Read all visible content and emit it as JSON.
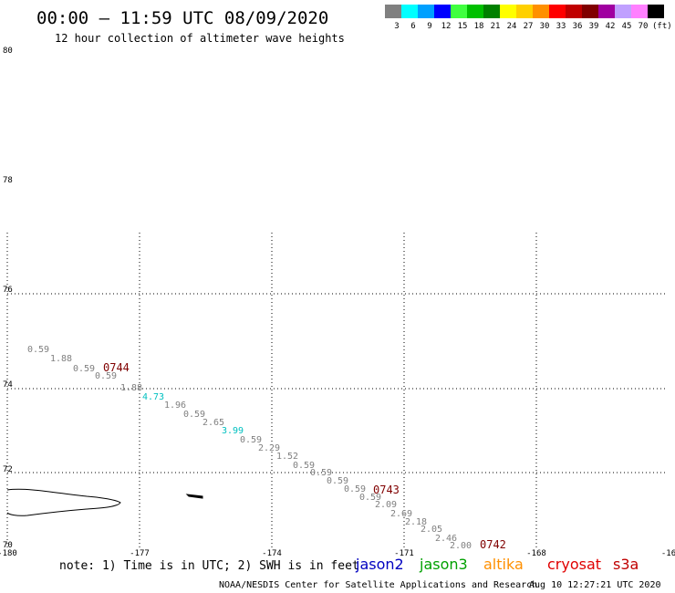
{
  "header": {
    "title": "00:00 – 11:59 UTC 08/09/2020",
    "subtitle": "12 hour collection of altimeter wave heights"
  },
  "legend": {
    "unit": "(ft)",
    "scale": [
      {
        "label": "3",
        "color": "#808080"
      },
      {
        "label": "6",
        "color": "#00ffff"
      },
      {
        "label": "9",
        "color": "#00a0ff"
      },
      {
        "label": "12",
        "color": "#0000ff"
      },
      {
        "label": "15",
        "color": "#40ff40"
      },
      {
        "label": "18",
        "color": "#00c000"
      },
      {
        "label": "21",
        "color": "#008000"
      },
      {
        "label": "24",
        "color": "#ffff00"
      },
      {
        "label": "27",
        "color": "#ffd000"
      },
      {
        "label": "30",
        "color": "#ff9000"
      },
      {
        "label": "33",
        "color": "#ff0000"
      },
      {
        "label": "36",
        "color": "#c00000"
      },
      {
        "label": "39",
        "color": "#800000"
      },
      {
        "label": "42",
        "color": "#a000a0"
      },
      {
        "label": "45",
        "color": "#c0a0ff"
      },
      {
        "label": "70",
        "color": "#ff80ff"
      },
      {
        "label": "",
        "color": "#000000"
      }
    ]
  },
  "axes": {
    "lat_labels": [
      "80",
      "78",
      "76",
      "74",
      "72",
      "70"
    ],
    "lon_labels": [
      "-180",
      "-177",
      "-174",
      "-171",
      "-168",
      "-16"
    ]
  },
  "track": [
    {
      "value": "0.59",
      "color": "#808080"
    },
    {
      "value": "1.88",
      "color": "#808080"
    },
    {
      "value": "0.59",
      "color": "#808080"
    },
    {
      "value": "0.59",
      "color": "#808080"
    },
    {
      "value": "1.88",
      "color": "#808080"
    },
    {
      "value": "4.73",
      "color": "#00c0c0"
    },
    {
      "value": "1.96",
      "color": "#808080"
    },
    {
      "value": "0.59",
      "color": "#808080"
    },
    {
      "value": "2.65",
      "color": "#808080"
    },
    {
      "value": "3.99",
      "color": "#00c0c0"
    },
    {
      "value": "0.59",
      "color": "#808080"
    },
    {
      "value": "2.29",
      "color": "#808080"
    },
    {
      "value": "1.52",
      "color": "#808080"
    },
    {
      "value": "0.59",
      "color": "#808080"
    },
    {
      "value": "0.59",
      "color": "#808080"
    },
    {
      "value": "0.59",
      "color": "#808080"
    },
    {
      "value": "0.59",
      "color": "#808080"
    },
    {
      "value": "0.59",
      "color": "#808080"
    },
    {
      "value": "2.09",
      "color": "#808080"
    },
    {
      "value": "2.69",
      "color": "#808080"
    },
    {
      "value": "2.18",
      "color": "#808080"
    },
    {
      "value": "2.05",
      "color": "#808080"
    },
    {
      "value": "2.46",
      "color": "#808080"
    },
    {
      "value": "2.00",
      "color": "#808080"
    }
  ],
  "times": [
    {
      "value": "0744",
      "color": "#800000"
    },
    {
      "value": "0743",
      "color": "#800000"
    },
    {
      "value": "0742",
      "color": "#800000"
    }
  ],
  "footer": {
    "note": "note: 1) Time is in UTC; 2) SWH is in feet",
    "satellites": [
      {
        "name": "jason2",
        "color": "#0000c0"
      },
      {
        "name": "jason3",
        "color": "#00a000"
      },
      {
        "name": "altika",
        "color": "#ff9000"
      },
      {
        "name": "cryosat",
        "color": "#e00000"
      },
      {
        "name": "s3a",
        "color": "#c00000"
      }
    ],
    "credit": "NOAA/NESDIS Center for Satellite Applications and Research",
    "timestamp": "Aug 10 12:27:21 UTC 2020"
  }
}
